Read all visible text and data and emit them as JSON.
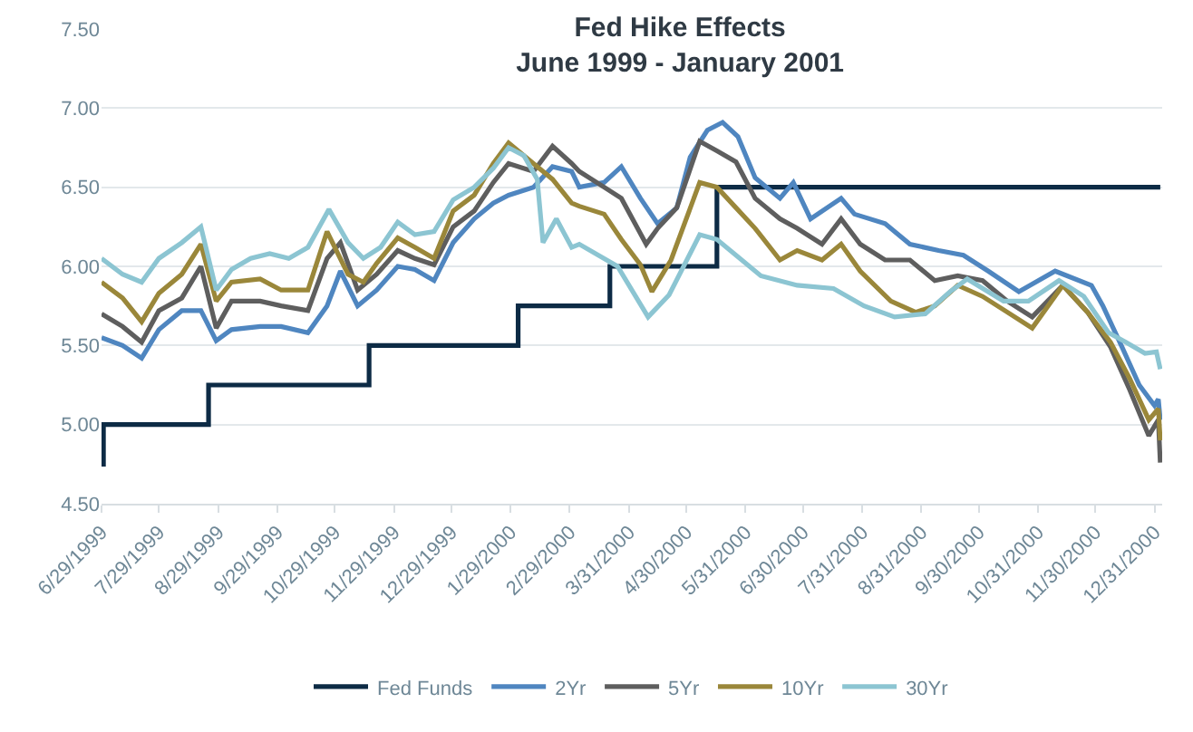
{
  "chart_data": {
    "type": "line",
    "title": "Fed Hike Effects",
    "subtitle": "June 1999 - January 2001",
    "xlim": [
      "1999-06-29",
      "2001-01-04"
    ],
    "xticks": [
      {
        "value": "1999-06-29",
        "label": "6/29/1999"
      },
      {
        "value": "1999-07-29",
        "label": "7/29/1999"
      },
      {
        "value": "1999-08-29",
        "label": "8/29/1999"
      },
      {
        "value": "1999-09-29",
        "label": "9/29/1999"
      },
      {
        "value": "1999-10-29",
        "label": "10/29/1999"
      },
      {
        "value": "1999-11-29",
        "label": "11/29/1999"
      },
      {
        "value": "1999-12-29",
        "label": "12/29/1999"
      },
      {
        "value": "2000-01-29",
        "label": "1/29/2000"
      },
      {
        "value": "2000-02-29",
        "label": "2/29/2000"
      },
      {
        "value": "2000-03-31",
        "label": "3/31/2000"
      },
      {
        "value": "2000-04-30",
        "label": "4/30/2000"
      },
      {
        "value": "2000-05-31",
        "label": "5/31/2000"
      },
      {
        "value": "2000-06-30",
        "label": "6/30/2000"
      },
      {
        "value": "2000-07-31",
        "label": "7/31/2000"
      },
      {
        "value": "2000-08-31",
        "label": "8/31/2000"
      },
      {
        "value": "2000-09-30",
        "label": "9/30/2000"
      },
      {
        "value": "2000-10-31",
        "label": "10/31/2000"
      },
      {
        "value": "2000-11-30",
        "label": "11/30/2000"
      },
      {
        "value": "2000-12-31",
        "label": "12/31/2000"
      }
    ],
    "ylim": [
      4.5,
      7.5
    ],
    "yticks": [
      {
        "value": 4.5,
        "label": "4.50"
      },
      {
        "value": 5.0,
        "label": "5.00"
      },
      {
        "value": 5.5,
        "label": "5.50"
      },
      {
        "value": 6.0,
        "label": "6.00"
      },
      {
        "value": 6.5,
        "label": "6.50"
      },
      {
        "value": 7.0,
        "label": "7.00"
      },
      {
        "value": 7.5,
        "label": "7.50"
      }
    ],
    "grid": "y",
    "legend": "bottom",
    "line_style": "solid",
    "marker": "none",
    "series": [
      {
        "name": "Fed Funds",
        "type": "step",
        "color": "#0d2b45",
        "x": [
          "1999-06-29",
          "1999-06-30",
          "1999-08-24",
          "1999-11-16",
          "2000-02-02",
          "2000-03-21",
          "2000-05-16",
          "2001-01-03"
        ],
        "values": [
          4.75,
          5.0,
          5.25,
          5.5,
          5.75,
          6.0,
          6.5,
          6.5
        ]
      },
      {
        "name": "2Yr",
        "color": "#4f86c0",
        "x": [
          "1999-06-29",
          "1999-07-10",
          "1999-07-20",
          "1999-07-29",
          "1999-08-10",
          "1999-08-20",
          "1999-08-28",
          "1999-09-05",
          "1999-09-20",
          "1999-10-01",
          "1999-10-15",
          "1999-10-25",
          "1999-11-01",
          "1999-11-10",
          "1999-11-20",
          "1999-12-01",
          "1999-12-10",
          "1999-12-20",
          "1999-12-30",
          "2000-01-10",
          "2000-01-20",
          "2000-01-28",
          "2000-02-10",
          "2000-02-20",
          "2000-03-01",
          "2000-03-05",
          "2000-03-18",
          "2000-03-27",
          "2000-04-06",
          "2000-04-15",
          "2000-04-25",
          "2000-05-02",
          "2000-05-11",
          "2000-05-19",
          "2000-05-27",
          "2000-06-05",
          "2000-06-18",
          "2000-06-25",
          "2000-07-04",
          "2000-07-20",
          "2000-07-27",
          "2000-08-12",
          "2000-08-25",
          "2000-09-09",
          "2000-09-22",
          "2000-10-05",
          "2000-10-21",
          "2000-11-09",
          "2000-11-28",
          "2000-12-04",
          "2000-12-14",
          "2000-12-23",
          "2000-12-31",
          "2001-01-02",
          "2001-01-03"
        ],
        "values": [
          5.55,
          5.5,
          5.42,
          5.6,
          5.72,
          5.72,
          5.53,
          5.6,
          5.62,
          5.62,
          5.58,
          5.75,
          5.97,
          5.75,
          5.85,
          6.0,
          5.98,
          5.91,
          6.15,
          6.3,
          6.4,
          6.45,
          6.5,
          6.63,
          6.6,
          6.5,
          6.53,
          6.63,
          6.43,
          6.27,
          6.37,
          6.69,
          6.86,
          6.91,
          6.82,
          6.56,
          6.43,
          6.53,
          6.3,
          6.43,
          6.33,
          6.27,
          6.14,
          6.1,
          6.07,
          5.97,
          5.84,
          5.97,
          5.88,
          5.75,
          5.49,
          5.25,
          5.12,
          5.16,
          5.03
        ]
      },
      {
        "name": "5Yr",
        "color": "#5e5e5e",
        "x": [
          "1999-06-29",
          "1999-07-10",
          "1999-07-20",
          "1999-07-29",
          "1999-08-10",
          "1999-08-20",
          "1999-08-28",
          "1999-09-05",
          "1999-09-20",
          "1999-10-01",
          "1999-10-15",
          "1999-10-25",
          "1999-11-01",
          "1999-11-10",
          "1999-11-20",
          "1999-12-01",
          "1999-12-10",
          "1999-12-20",
          "1999-12-30",
          "2000-01-10",
          "2000-01-20",
          "2000-01-28",
          "2000-02-10",
          "2000-02-20",
          "2000-03-01",
          "2000-03-05",
          "2000-03-18",
          "2000-03-27",
          "2000-04-09",
          "2000-04-15",
          "2000-04-25",
          "2000-05-07",
          "2000-05-16",
          "2000-05-26",
          "2000-06-05",
          "2000-06-18",
          "2000-06-27",
          "2000-07-10",
          "2000-07-20",
          "2000-07-30",
          "2000-08-12",
          "2000-08-25",
          "2000-09-07",
          "2000-09-19",
          "2000-10-02",
          "2000-10-15",
          "2000-10-28",
          "2000-11-13",
          "2000-11-26",
          "2000-12-08",
          "2000-12-18",
          "2000-12-28",
          "2001-01-02",
          "2001-01-03"
        ],
        "values": [
          5.7,
          5.62,
          5.52,
          5.72,
          5.8,
          6.0,
          5.61,
          5.78,
          5.78,
          5.75,
          5.72,
          6.05,
          6.15,
          5.85,
          5.95,
          6.1,
          6.05,
          6.01,
          6.25,
          6.35,
          6.53,
          6.65,
          6.6,
          6.76,
          6.65,
          6.6,
          6.5,
          6.43,
          6.14,
          6.24,
          6.37,
          6.79,
          6.73,
          6.66,
          6.43,
          6.3,
          6.24,
          6.14,
          6.3,
          6.14,
          6.04,
          6.04,
          5.91,
          5.94,
          5.91,
          5.78,
          5.68,
          5.88,
          5.71,
          5.49,
          5.22,
          4.93,
          5.03,
          4.76
        ]
      },
      {
        "name": "10Yr",
        "color": "#9a873a",
        "x": [
          "1999-06-29",
          "1999-07-10",
          "1999-07-20",
          "1999-07-29",
          "1999-08-10",
          "1999-08-20",
          "1999-08-28",
          "1999-09-05",
          "1999-09-20",
          "1999-10-01",
          "1999-10-15",
          "1999-10-25",
          "1999-11-05",
          "1999-11-13",
          "1999-11-20",
          "1999-12-01",
          "1999-12-10",
          "1999-12-20",
          "1999-12-30",
          "2000-01-10",
          "2000-01-20",
          "2000-01-28",
          "2000-02-10",
          "2000-02-20",
          "2000-03-01",
          "2000-03-05",
          "2000-03-18",
          "2000-03-27",
          "2000-04-06",
          "2000-04-12",
          "2000-04-22",
          "2000-05-07",
          "2000-05-16",
          "2000-05-26",
          "2000-06-05",
          "2000-06-18",
          "2000-06-27",
          "2000-07-10",
          "2000-07-20",
          "2000-07-30",
          "2000-08-15",
          "2000-08-28",
          "2000-09-07",
          "2000-09-19",
          "2000-10-02",
          "2000-10-15",
          "2000-10-28",
          "2000-11-13",
          "2000-11-26",
          "2000-12-08",
          "2000-12-18",
          "2000-12-28",
          "2001-01-02",
          "2001-01-03"
        ],
        "values": [
          5.9,
          5.8,
          5.65,
          5.83,
          5.95,
          6.14,
          5.78,
          5.9,
          5.92,
          5.85,
          5.85,
          6.22,
          5.95,
          5.9,
          6.02,
          6.18,
          6.12,
          6.05,
          6.35,
          6.45,
          6.65,
          6.78,
          6.65,
          6.55,
          6.4,
          6.38,
          6.33,
          6.17,
          6.01,
          5.84,
          6.04,
          6.53,
          6.5,
          6.37,
          6.24,
          6.04,
          6.1,
          6.04,
          6.14,
          5.97,
          5.78,
          5.71,
          5.75,
          5.88,
          5.81,
          5.71,
          5.61,
          5.88,
          5.71,
          5.52,
          5.29,
          5.03,
          5.1,
          4.9
        ]
      },
      {
        "name": "30Yr",
        "color": "#8cc5d2",
        "x": [
          "1999-06-29",
          "1999-07-10",
          "1999-07-20",
          "1999-07-29",
          "1999-08-10",
          "1999-08-20",
          "1999-08-28",
          "1999-09-05",
          "1999-09-15",
          "1999-09-25",
          "1999-10-05",
          "1999-10-15",
          "1999-10-26",
          "1999-11-05",
          "1999-11-13",
          "1999-11-22",
          "1999-12-01",
          "1999-12-10",
          "1999-12-20",
          "1999-12-30",
          "2000-01-10",
          "2000-01-20",
          "2000-01-28",
          "2000-02-05",
          "2000-02-12",
          "2000-02-15",
          "2000-02-22",
          "2000-03-01",
          "2000-03-05",
          "2000-03-25",
          "2000-04-10",
          "2000-04-21",
          "2000-05-07",
          "2000-05-16",
          "2000-05-26",
          "2000-06-08",
          "2000-06-27",
          "2000-07-16",
          "2000-08-01",
          "2000-08-17",
          "2000-09-02",
          "2000-09-15",
          "2000-09-24",
          "2000-10-13",
          "2000-10-26",
          "2000-11-11",
          "2000-11-24",
          "2000-12-07",
          "2000-12-16",
          "2000-12-26",
          "2001-01-01",
          "2001-01-03"
        ],
        "values": [
          6.05,
          5.95,
          5.9,
          6.05,
          6.15,
          6.25,
          5.85,
          5.98,
          6.05,
          6.08,
          6.05,
          6.12,
          6.36,
          6.15,
          6.05,
          6.12,
          6.28,
          6.2,
          6.22,
          6.42,
          6.5,
          6.62,
          6.75,
          6.7,
          6.55,
          6.15,
          6.3,
          6.12,
          6.14,
          6.0,
          5.68,
          5.82,
          6.2,
          6.17,
          6.07,
          5.94,
          5.88,
          5.86,
          5.75,
          5.68,
          5.7,
          5.84,
          5.92,
          5.78,
          5.78,
          5.91,
          5.81,
          5.58,
          5.52,
          5.45,
          5.46,
          5.35
        ]
      }
    ]
  }
}
